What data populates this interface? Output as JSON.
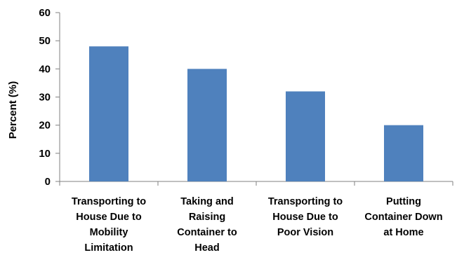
{
  "chart_data": {
    "type": "bar",
    "title": "",
    "xlabel": "",
    "ylabel": "Percent (%)",
    "ylim": [
      0,
      60
    ],
    "yticks": [
      0,
      10,
      20,
      30,
      40,
      50,
      60
    ],
    "grid": false,
    "legend": "none",
    "categories": [
      [
        "Transporting to",
        "House Due to",
        "Mobility",
        "Limitation"
      ],
      [
        "Taking and",
        "Raising",
        "Container to",
        "Head"
      ],
      [
        "Transporting to",
        "House Due to",
        "Poor Vision"
      ],
      [
        "Putting",
        "Container Down",
        "at Home"
      ]
    ],
    "values": [
      48,
      40,
      32,
      20
    ],
    "colors": {
      "bar": "#4F81BD",
      "axis": "#808080"
    }
  }
}
